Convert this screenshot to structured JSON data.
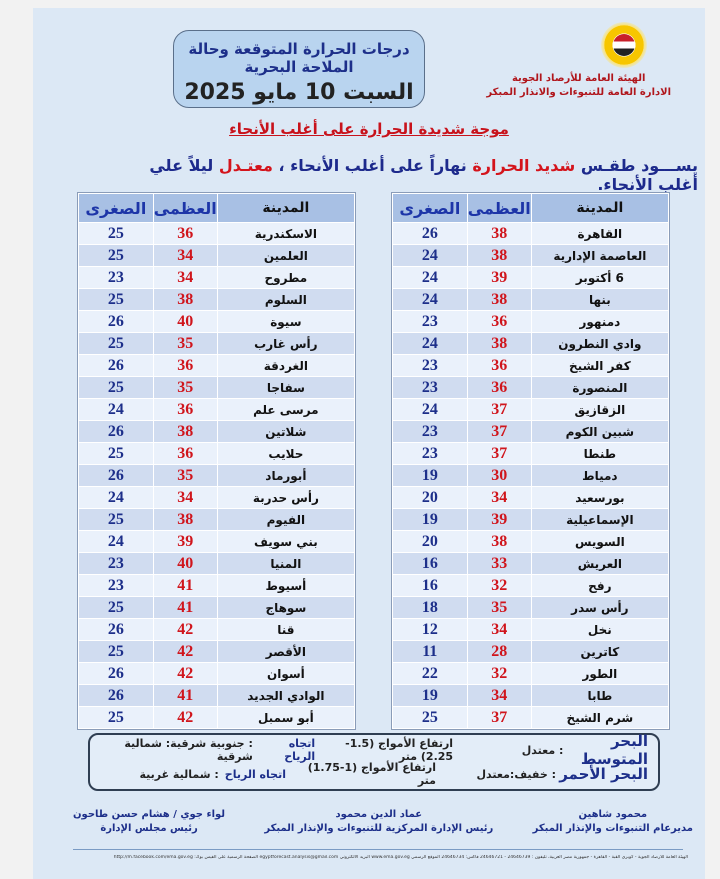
{
  "header": {
    "org_line1": "الهيئة العامة للأرصاد الجوية",
    "org_line2": "الادارة العامة للتنبوءات والانذار المبكر",
    "title": "درجات الحرارة المتوقعة وحالة الملاحة البحرية",
    "date": "السبت 10 مايو 2025",
    "headline": "موجة شديدة الحرارة على أغلب الأنحاء",
    "summary": {
      "p1": "يســـود طقـس ",
      "p2": "شديد الحرارة",
      "p3": " نهاراً على أغلب الأنحاء ، ",
      "p4": "معتـدل",
      "p5": " ليلاً علي أغلب الأنحاء."
    }
  },
  "columns": {
    "city": "المدينة",
    "max": "العظمى",
    "min": "الصغرى"
  },
  "table_right": [
    [
      "القاهرة",
      "38",
      "26"
    ],
    [
      "العاصمة الإدارية",
      "38",
      "24"
    ],
    [
      "6 أكتوبر",
      "39",
      "24"
    ],
    [
      "بنها",
      "38",
      "24"
    ],
    [
      "دمنهور",
      "36",
      "23"
    ],
    [
      "وادي النطرون",
      "38",
      "24"
    ],
    [
      "كفر الشيخ",
      "36",
      "23"
    ],
    [
      "المنصورة",
      "36",
      "23"
    ],
    [
      "الزقازيق",
      "37",
      "24"
    ],
    [
      "شبين الكوم",
      "37",
      "23"
    ],
    [
      "طنطا",
      "37",
      "23"
    ],
    [
      "دمياط",
      "30",
      "19"
    ],
    [
      "بورسعيد",
      "34",
      "20"
    ],
    [
      "الإسماعيلية",
      "39",
      "19"
    ],
    [
      "السويس",
      "38",
      "20"
    ],
    [
      "العريش",
      "33",
      "16"
    ],
    [
      "رفح",
      "32",
      "16"
    ],
    [
      "رأس سدر",
      "35",
      "18"
    ],
    [
      "نخل",
      "34",
      "12"
    ],
    [
      "كاترين",
      "28",
      "11"
    ],
    [
      "الطور",
      "32",
      "22"
    ],
    [
      "طابا",
      "34",
      "19"
    ],
    [
      "شرم الشيخ",
      "37",
      "25"
    ]
  ],
  "table_left": [
    [
      "الاسكندرية",
      "36",
      "25"
    ],
    [
      "العلمين",
      "34",
      "25"
    ],
    [
      "مطروح",
      "34",
      "23"
    ],
    [
      "السلوم",
      "38",
      "25"
    ],
    [
      "سيوة",
      "40",
      "26"
    ],
    [
      "رأس غارب",
      "35",
      "25"
    ],
    [
      "الغردقة",
      "36",
      "26"
    ],
    [
      "سفاجا",
      "35",
      "25"
    ],
    [
      "مرسى علم",
      "36",
      "24"
    ],
    [
      "شلاتين",
      "38",
      "26"
    ],
    [
      "حلايب",
      "36",
      "25"
    ],
    [
      "أبورماد",
      "35",
      "26"
    ],
    [
      "رأس حدربة",
      "34",
      "24"
    ],
    [
      "الفيوم",
      "38",
      "25"
    ],
    [
      "بني سويف",
      "39",
      "24"
    ],
    [
      "المنيا",
      "40",
      "23"
    ],
    [
      "أسيوط",
      "41",
      "23"
    ],
    [
      "سوهاج",
      "41",
      "25"
    ],
    [
      "قنا",
      "42",
      "26"
    ],
    [
      "الأقصر",
      "42",
      "25"
    ],
    [
      "أسوان",
      "42",
      "26"
    ],
    [
      "الوادي الجديد",
      "41",
      "26"
    ],
    [
      "أبو سمبل",
      "42",
      "25"
    ]
  ],
  "seas": [
    {
      "name": "البحر المتوسط",
      "state": ":  معتدل",
      "waves": "ارتفاع الأمواج (1.5-2.25) متر",
      "wind_label": "اتجاه الرياح",
      "wind": ": جنوبية شرقية: شمالية شرقية"
    },
    {
      "name": "البحر الأحمر",
      "state": ":  خفيف:معتدل",
      "waves": "ارتفاع الأمواج (1-1.75) متر",
      "wind_label": "اتجاه الرياح",
      "wind": ": شمالية غربية"
    }
  ],
  "signatures": [
    {
      "name": "محمود شاهين",
      "title": "مديرعام التنبوءات والإنذار المبكر"
    },
    {
      "name": "عماد الدين محمود",
      "title": "رئيس الإدارة المركزية للتنبوءات والإنذار المبكر"
    },
    {
      "name": "لواء جوي / هشام حسن طاحون",
      "title": "رئيس مجلس الإدارة"
    }
  ],
  "footer": "الهيئة العامة للأرصاد الجوية - كوبري القبة - القاهرة - جمهورية مصر العربية، تليفون : 24646739 - 24646721 فاكس: 24646734 الموقع الرسمي www.ema.gov.eg البريد الالكتروني egyptforecast.analysis@gmail.com الصفحة الرسمية على الفيس بوك: http://m.facebook.com/ema.gov.eg"
}
